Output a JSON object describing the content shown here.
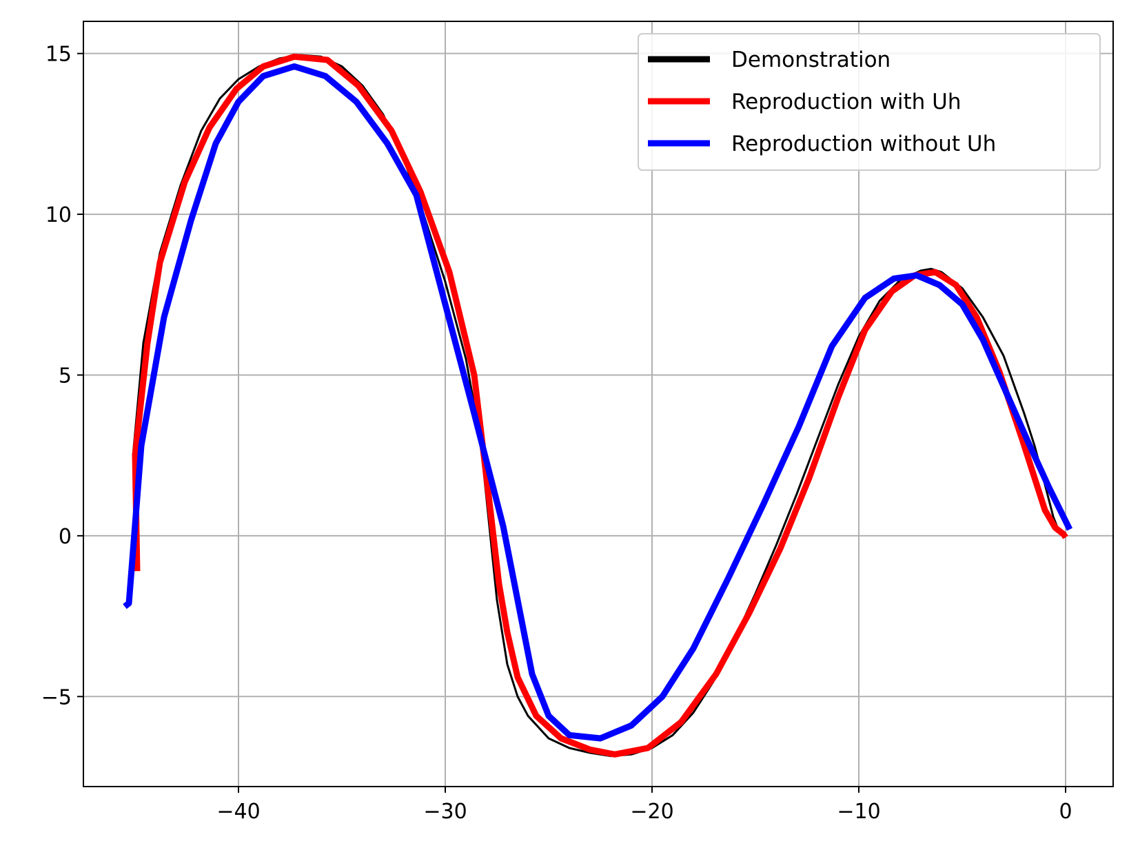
{
  "chart_data": {
    "type": "line",
    "title": "",
    "xlabel": "",
    "ylabel": "",
    "xlim": [
      -47.5,
      2.3
    ],
    "ylim": [
      -7.8,
      16
    ],
    "grid": true,
    "legend_position": "top-right",
    "x_ticks": [
      {
        "value": -40,
        "label": "−40"
      },
      {
        "value": -30,
        "label": "−30"
      },
      {
        "value": -20,
        "label": "−20"
      },
      {
        "value": -10,
        "label": "−10"
      },
      {
        "value": 0,
        "label": "0"
      }
    ],
    "y_ticks": [
      {
        "value": 15,
        "label": "15"
      },
      {
        "value": 10,
        "label": "10"
      },
      {
        "value": 5,
        "label": "5"
      },
      {
        "value": 0,
        "label": "0"
      },
      {
        "value": -5,
        "label": "−5"
      }
    ],
    "series": [
      {
        "name": "Demonstration",
        "color": "#000000",
        "x": [
          -45.1,
          -44.6,
          -43.8,
          -42.8,
          -41.8,
          -40.9,
          -40.0,
          -39.0,
          -38.0,
          -37.0,
          -36.0,
          -35.0,
          -34.0,
          -33.0,
          -32.0,
          -31.0,
          -30.0,
          -29.0,
          -28.3,
          -27.9,
          -27.5,
          -27.0,
          -26.5,
          -26.0,
          -25.0,
          -24.0,
          -23.0,
          -22.0,
          -21.0,
          -20.0,
          -19.0,
          -18.0,
          -17.0,
          -16.0,
          -15.0,
          -14.0,
          -13.0,
          -12.0,
          -11.0,
          -10.0,
          -9.0,
          -8.0,
          -7.0,
          -6.5,
          -6.0,
          -5.0,
          -4.0,
          -3.0,
          -2.0,
          -1.5,
          -1.0,
          -0.6,
          -0.3,
          0.0
        ],
        "y": [
          2.5,
          6.0,
          8.8,
          10.9,
          12.6,
          13.6,
          14.2,
          14.6,
          14.85,
          14.95,
          14.9,
          14.6,
          14.0,
          13.1,
          11.7,
          9.9,
          7.9,
          5.5,
          3.0,
          0.5,
          -2.0,
          -4.0,
          -5.0,
          -5.6,
          -6.3,
          -6.6,
          -6.75,
          -6.85,
          -6.8,
          -6.6,
          -6.2,
          -5.5,
          -4.5,
          -3.2,
          -1.8,
          -0.3,
          1.3,
          3.0,
          4.7,
          6.2,
          7.3,
          7.95,
          8.25,
          8.3,
          8.2,
          7.7,
          6.8,
          5.6,
          3.8,
          2.8,
          1.6,
          0.6,
          0.1,
          -0.05
        ]
      },
      {
        "name": "Reproduction with Uh",
        "color": "#ff0000",
        "x": [
          -44.9,
          -45.0,
          -44.4,
          -43.8,
          -42.6,
          -41.4,
          -40.1,
          -38.8,
          -37.3,
          -35.7,
          -34.2,
          -32.6,
          -31.2,
          -29.8,
          -28.6,
          -27.8,
          -27.4,
          -27.0,
          -26.5,
          -25.6,
          -24.4,
          -23.0,
          -21.8,
          -20.2,
          -18.6,
          -16.9,
          -15.3,
          -13.8,
          -12.4,
          -11.0,
          -9.7,
          -8.4,
          -7.3,
          -6.3,
          -5.3,
          -4.3,
          -3.2,
          -2.1,
          -1.0,
          -0.5,
          -0.1,
          0.0
        ],
        "y": [
          -1.1,
          2.5,
          6.0,
          8.5,
          11.0,
          12.7,
          13.9,
          14.6,
          14.9,
          14.8,
          14.0,
          12.6,
          10.7,
          8.2,
          5.0,
          0.7,
          -1.5,
          -3.0,
          -4.4,
          -5.6,
          -6.3,
          -6.65,
          -6.8,
          -6.6,
          -5.8,
          -4.3,
          -2.4,
          -0.4,
          1.8,
          4.3,
          6.4,
          7.6,
          8.1,
          8.2,
          7.8,
          6.8,
          5.1,
          3.0,
          0.8,
          0.25,
          0.05,
          -0.05
        ]
      },
      {
        "name": "Reproduction without Uh",
        "color": "#0000ff",
        "x": [
          -45.5,
          -45.3,
          -44.7,
          -43.6,
          -42.3,
          -41.1,
          -40.0,
          -38.8,
          -37.3,
          -35.8,
          -34.3,
          -32.8,
          -31.4,
          -30.0,
          -28.6,
          -27.2,
          -25.8,
          -25.0,
          -24.0,
          -22.5,
          -21.0,
          -19.5,
          -18.0,
          -16.3,
          -14.6,
          -12.9,
          -11.3,
          -9.7,
          -8.3,
          -7.2,
          -6.1,
          -5.0,
          -4.0,
          -2.9,
          -1.8,
          -0.8,
          0.2
        ],
        "y": [
          -2.2,
          -2.1,
          2.8,
          6.8,
          9.8,
          12.2,
          13.5,
          14.3,
          14.6,
          14.3,
          13.5,
          12.2,
          10.6,
          7.2,
          3.8,
          0.3,
          -4.3,
          -5.6,
          -6.2,
          -6.3,
          -5.9,
          -5.0,
          -3.5,
          -1.3,
          1.0,
          3.4,
          5.9,
          7.4,
          8.0,
          8.1,
          7.8,
          7.2,
          6.1,
          4.5,
          2.9,
          1.5,
          0.2
        ]
      }
    ]
  }
}
